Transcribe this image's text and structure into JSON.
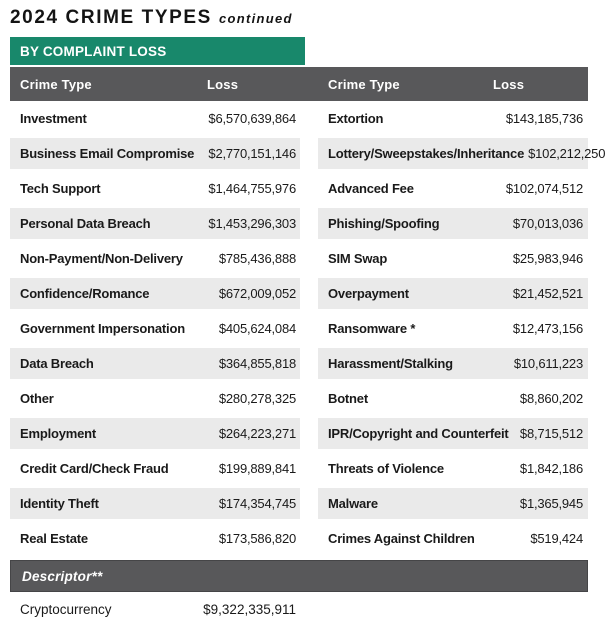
{
  "page": {
    "title": "2024 CRIME TYPES",
    "title_suffix": "continued",
    "section_banner": "BY COMPLAINT LOSS"
  },
  "table": {
    "headers": {
      "crime_type_left": "Crime Type",
      "loss_left": "Loss",
      "crime_type_right": "Crime Type",
      "loss_right": "Loss"
    },
    "rows": [
      {
        "left": {
          "type": "Investment",
          "loss": "$6,570,639,864"
        },
        "right": {
          "type": "Extortion",
          "loss": "$143,185,736"
        }
      },
      {
        "left": {
          "type": "Business Email Compromise",
          "loss": "$2,770,151,146"
        },
        "right": {
          "type": "Lottery/Sweepstakes/Inheritance",
          "loss": "$102,212,250"
        }
      },
      {
        "left": {
          "type": "Tech Support",
          "loss": "$1,464,755,976"
        },
        "right": {
          "type": "Advanced Fee",
          "loss": "$102,074,512"
        }
      },
      {
        "left": {
          "type": "Personal Data Breach",
          "loss": "$1,453,296,303"
        },
        "right": {
          "type": "Phishing/Spoofing",
          "loss": "$70,013,036"
        }
      },
      {
        "left": {
          "type": "Non-Payment/Non-Delivery",
          "loss": "$785,436,888"
        },
        "right": {
          "type": "SIM Swap",
          "loss": "$25,983,946"
        }
      },
      {
        "left": {
          "type": "Confidence/Romance",
          "loss": "$672,009,052"
        },
        "right": {
          "type": "Overpayment",
          "loss": "$21,452,521"
        }
      },
      {
        "left": {
          "type": "Government Impersonation",
          "loss": "$405,624,084"
        },
        "right": {
          "type": "Ransomware *",
          "loss": "$12,473,156"
        }
      },
      {
        "left": {
          "type": "Data Breach",
          "loss": "$364,855,818"
        },
        "right": {
          "type": "Harassment/Stalking",
          "loss": "$10,611,223"
        }
      },
      {
        "left": {
          "type": "Other",
          "loss": "$280,278,325"
        },
        "right": {
          "type": "Botnet",
          "loss": "$8,860,202"
        }
      },
      {
        "left": {
          "type": "Employment",
          "loss": "$264,223,271"
        },
        "right": {
          "type": "IPR/Copyright and Counterfeit",
          "loss": "$8,715,512"
        }
      },
      {
        "left": {
          "type": "Credit Card/Check Fraud",
          "loss": "$199,889,841"
        },
        "right": {
          "type": "Threats of Violence",
          "loss": "$1,842,186"
        }
      },
      {
        "left": {
          "type": "Identity Theft",
          "loss": "$174,354,745"
        },
        "right": {
          "type": "Malware",
          "loss": "$1,365,945"
        }
      },
      {
        "left": {
          "type": "Real Estate",
          "loss": "$173,586,820"
        },
        "right": {
          "type": "Crimes Against Children",
          "loss": "$519,424"
        }
      }
    ],
    "descriptor": {
      "label": "Descriptor**",
      "rows": [
        {
          "type": "Cryptocurrency",
          "loss": "$9,322,335,911"
        }
      ]
    }
  },
  "colors": {
    "banner_green": "#18886B",
    "header_gray": "#58585A",
    "stripe_gray": "#EAEAEA",
    "text": "#1A1A1A"
  }
}
